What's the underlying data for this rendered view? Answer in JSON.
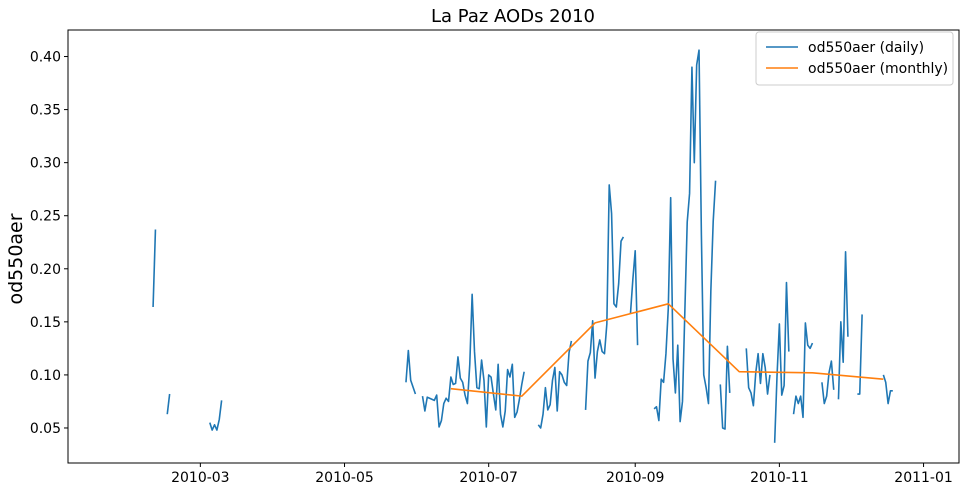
{
  "chart_data": {
    "type": "line",
    "title": "La Paz AODs 2010",
    "xlabel": "",
    "ylabel": "od550aer",
    "x_axis_type": "date",
    "xlim": [
      "2010-01-04",
      "2011-01-16"
    ],
    "ylim": [
      0.017,
      0.425
    ],
    "x_ticks": [
      "2010-03-01",
      "2010-05-01",
      "2010-07-01",
      "2010-09-01",
      "2010-11-01",
      "2011-01-01"
    ],
    "x_tick_labels": [
      "2010-03",
      "2010-05",
      "2010-07",
      "2010-09",
      "2010-11",
      "2011-01"
    ],
    "y_ticks": [
      0.05,
      0.1,
      0.15,
      0.2,
      0.25,
      0.3,
      0.35,
      0.4
    ],
    "y_tick_labels": [
      "0.05",
      "0.10",
      "0.15",
      "0.20",
      "0.25",
      "0.30",
      "0.35",
      "0.40"
    ],
    "grid": false,
    "legend_position": "top-right",
    "series": [
      {
        "name": "od550aer (daily)",
        "color": "#1f77b4",
        "segments": [
          [
            [
              "2010-02-09",
              0.164
            ],
            [
              "2010-02-10",
              0.237
            ]
          ],
          [
            [
              "2010-02-15",
              0.063
            ],
            [
              "2010-02-16",
              0.082
            ]
          ],
          [
            [
              "2010-03-05",
              0.055
            ],
            [
              "2010-03-06",
              0.048
            ],
            [
              "2010-03-07",
              0.053
            ],
            [
              "2010-03-08",
              0.048
            ],
            [
              "2010-03-09",
              0.058
            ],
            [
              "2010-03-10",
              0.076
            ]
          ],
          [
            [
              "2010-05-27",
              0.093
            ],
            [
              "2010-05-28",
              0.123
            ],
            [
              "2010-05-29",
              0.095
            ],
            [
              "2010-05-31",
              0.082
            ]
          ],
          [
            [
              "2010-06-03",
              0.08
            ],
            [
              "2010-06-04",
              0.066
            ],
            [
              "2010-06-05",
              0.079
            ],
            [
              "2010-06-06",
              0.078
            ],
            [
              "2010-06-08",
              0.076
            ],
            [
              "2010-06-09",
              0.081
            ],
            [
              "2010-06-10",
              0.051
            ],
            [
              "2010-06-11",
              0.057
            ],
            [
              "2010-06-12",
              0.073
            ],
            [
              "2010-06-13",
              0.078
            ],
            [
              "2010-06-14",
              0.075
            ],
            [
              "2010-06-15",
              0.098
            ],
            [
              "2010-06-16",
              0.091
            ],
            [
              "2010-06-17",
              0.092
            ],
            [
              "2010-06-18",
              0.117
            ],
            [
              "2010-06-19",
              0.097
            ],
            [
              "2010-06-20",
              0.093
            ],
            [
              "2010-06-21",
              0.081
            ],
            [
              "2010-06-22",
              0.073
            ],
            [
              "2010-06-23",
              0.11
            ],
            [
              "2010-06-24",
              0.176
            ],
            [
              "2010-06-25",
              0.122
            ],
            [
              "2010-06-26",
              0.088
            ],
            [
              "2010-06-27",
              0.087
            ],
            [
              "2010-06-28",
              0.114
            ],
            [
              "2010-06-29",
              0.095
            ],
            [
              "2010-06-30",
              0.051
            ],
            [
              "2010-07-01",
              0.1
            ],
            [
              "2010-07-02",
              0.098
            ],
            [
              "2010-07-03",
              0.082
            ],
            [
              "2010-07-04",
              0.067
            ],
            [
              "2010-07-05",
              0.11
            ],
            [
              "2010-07-06",
              0.063
            ],
            [
              "2010-07-07",
              0.051
            ],
            [
              "2010-07-08",
              0.066
            ],
            [
              "2010-07-09",
              0.105
            ],
            [
              "2010-07-10",
              0.098
            ],
            [
              "2010-07-11",
              0.11
            ],
            [
              "2010-07-12",
              0.06
            ],
            [
              "2010-07-13",
              0.065
            ],
            [
              "2010-07-14",
              0.077
            ],
            [
              "2010-07-15",
              0.091
            ],
            [
              "2010-07-16",
              0.103
            ]
          ],
          [
            [
              "2010-07-22",
              0.053
            ],
            [
              "2010-07-23",
              0.05
            ],
            [
              "2010-07-24",
              0.063
            ],
            [
              "2010-07-25",
              0.088
            ],
            [
              "2010-07-26",
              0.067
            ],
            [
              "2010-07-27",
              0.072
            ],
            [
              "2010-07-28",
              0.095
            ],
            [
              "2010-07-29",
              0.107
            ],
            [
              "2010-07-30",
              0.066
            ],
            [
              "2010-07-31",
              0.103
            ],
            [
              "2010-08-01",
              0.1
            ],
            [
              "2010-08-02",
              0.093
            ],
            [
              "2010-08-03",
              0.09
            ],
            [
              "2010-08-04",
              0.121
            ],
            [
              "2010-08-05",
              0.132
            ]
          ],
          [
            [
              "2010-08-11",
              0.067
            ],
            [
              "2010-08-12",
              0.113
            ],
            [
              "2010-08-13",
              0.121
            ],
            [
              "2010-08-14",
              0.151
            ],
            [
              "2010-08-15",
              0.097
            ],
            [
              "2010-08-16",
              0.122
            ],
            [
              "2010-08-17",
              0.133
            ],
            [
              "2010-08-18",
              0.122
            ],
            [
              "2010-08-19",
              0.12
            ],
            [
              "2010-08-20",
              0.148
            ],
            [
              "2010-08-21",
              0.279
            ],
            [
              "2010-08-22",
              0.252
            ],
            [
              "2010-08-23",
              0.167
            ],
            [
              "2010-08-24",
              0.164
            ],
            [
              "2010-08-25",
              0.186
            ],
            [
              "2010-08-26",
              0.226
            ],
            [
              "2010-08-27",
              0.23
            ]
          ],
          [
            [
              "2010-08-30",
              0.158
            ],
            [
              "2010-08-31",
              0.19
            ],
            [
              "2010-09-01",
              0.217
            ],
            [
              "2010-09-02",
              0.128
            ]
          ],
          [
            [
              "2010-09-09",
              0.068
            ],
            [
              "2010-09-10",
              0.07
            ],
            [
              "2010-09-11",
              0.057
            ],
            [
              "2010-09-12",
              0.096
            ],
            [
              "2010-09-13",
              0.093
            ],
            [
              "2010-09-14",
              0.12
            ],
            [
              "2010-09-15",
              0.163
            ],
            [
              "2010-09-16",
              0.267
            ],
            [
              "2010-09-17",
              0.115
            ],
            [
              "2010-09-18",
              0.083
            ],
            [
              "2010-09-19",
              0.128
            ],
            [
              "2010-09-20",
              0.056
            ],
            [
              "2010-09-21",
              0.075
            ],
            [
              "2010-09-22",
              0.16
            ],
            [
              "2010-09-23",
              0.244
            ],
            [
              "2010-09-24",
              0.271
            ],
            [
              "2010-09-25",
              0.39
            ],
            [
              "2010-09-26",
              0.3
            ],
            [
              "2010-09-27",
              0.392
            ],
            [
              "2010-09-28",
              0.406
            ],
            [
              "2010-09-29",
              0.232
            ],
            [
              "2010-09-30",
              0.1
            ],
            [
              "2010-10-01",
              0.088
            ],
            [
              "2010-10-02",
              0.073
            ],
            [
              "2010-10-03",
              0.179
            ],
            [
              "2010-10-04",
              0.245
            ],
            [
              "2010-10-05",
              0.283
            ]
          ],
          [
            [
              "2010-10-07",
              0.091
            ],
            [
              "2010-10-08",
              0.05
            ],
            [
              "2010-10-09",
              0.049
            ],
            [
              "2010-10-10",
              0.127
            ],
            [
              "2010-10-11",
              0.083
            ]
          ],
          [
            [
              "2010-10-18",
              0.125
            ],
            [
              "2010-10-19",
              0.088
            ],
            [
              "2010-10-20",
              0.083
            ],
            [
              "2010-10-21",
              0.071
            ],
            [
              "2010-10-22",
              0.102
            ],
            [
              "2010-10-23",
              0.12
            ],
            [
              "2010-10-24",
              0.092
            ],
            [
              "2010-10-25",
              0.12
            ],
            [
              "2010-10-26",
              0.107
            ],
            [
              "2010-10-27",
              0.082
            ],
            [
              "2010-10-28",
              0.1
            ]
          ],
          [
            [
              "2010-10-30",
              0.036
            ],
            [
              "2010-10-31",
              0.099
            ],
            [
              "2010-11-01",
              0.148
            ],
            [
              "2010-11-02",
              0.081
            ],
            [
              "2010-11-03",
              0.09
            ],
            [
              "2010-11-04",
              0.187
            ],
            [
              "2010-11-05",
              0.122
            ]
          ],
          [
            [
              "2010-11-07",
              0.063
            ],
            [
              "2010-11-08",
              0.08
            ],
            [
              "2010-11-09",
              0.073
            ],
            [
              "2010-11-10",
              0.08
            ],
            [
              "2010-11-11",
              0.06
            ],
            [
              "2010-11-12",
              0.149
            ],
            [
              "2010-11-13",
              0.128
            ],
            [
              "2010-11-14",
              0.125
            ],
            [
              "2010-11-15",
              0.13
            ]
          ],
          [
            [
              "2010-11-19",
              0.093
            ],
            [
              "2010-11-20",
              0.073
            ],
            [
              "2010-11-21",
              0.08
            ],
            [
              "2010-11-22",
              0.102
            ],
            [
              "2010-11-23",
              0.113
            ],
            [
              "2010-11-24",
              0.086
            ]
          ],
          [
            [
              "2010-11-26",
              0.077
            ],
            [
              "2010-11-27",
              0.15
            ],
            [
              "2010-11-28",
              0.112
            ],
            [
              "2010-11-29",
              0.216
            ],
            [
              "2010-11-30",
              0.136
            ]
          ],
          [
            [
              "2010-12-04",
              0.082
            ],
            [
              "2010-12-05",
              0.082
            ],
            [
              "2010-12-06",
              0.157
            ]
          ],
          [
            [
              "2010-12-15",
              0.1
            ],
            [
              "2010-12-16",
              0.093
            ],
            [
              "2010-12-17",
              0.073
            ],
            [
              "2010-12-18",
              0.085
            ],
            [
              "2010-12-19",
              0.085
            ]
          ]
        ]
      },
      {
        "name": "od550aer (monthly)",
        "color": "#ff7f0e",
        "segments": [
          [
            [
              "2010-06-15",
              0.087
            ],
            [
              "2010-07-15",
              0.08
            ],
            [
              "2010-08-15",
              0.149
            ],
            [
              "2010-09-15",
              0.167
            ],
            [
              "2010-10-15",
              0.103
            ],
            [
              "2010-11-15",
              0.102
            ],
            [
              "2010-12-15",
              0.096
            ]
          ]
        ]
      }
    ]
  }
}
